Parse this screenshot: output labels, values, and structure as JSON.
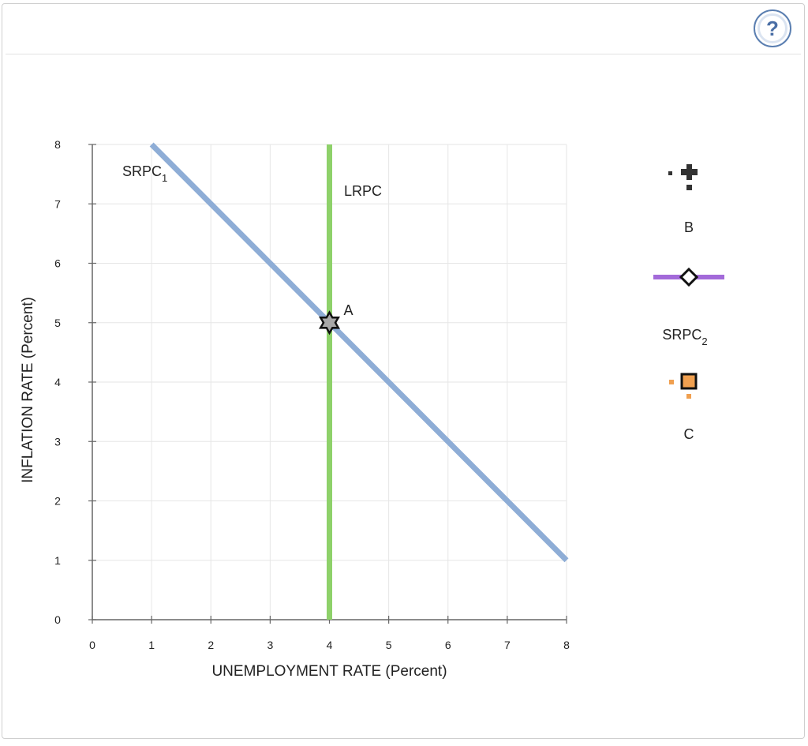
{
  "help": {
    "glyph": "?"
  },
  "chart_data": {
    "type": "line",
    "xlabel": "UNEMPLOYMENT RATE (Percent)",
    "ylabel": "INFLATION RATE (Percent)",
    "xlim": [
      0,
      8
    ],
    "ylim": [
      0,
      8
    ],
    "x_ticks": [
      "0",
      "1",
      "2",
      "3",
      "4",
      "5",
      "6",
      "7",
      "8"
    ],
    "y_ticks": [
      "0",
      "1",
      "2",
      "3",
      "4",
      "5",
      "6",
      "7",
      "8"
    ],
    "grid": true,
    "series": [
      {
        "name": "SRPC",
        "subscript": "1",
        "points": [
          [
            1,
            8
          ],
          [
            8,
            1
          ]
        ],
        "color": "#8eadd6"
      },
      {
        "name": "LRPC",
        "points": [
          [
            4,
            0
          ],
          [
            4,
            8
          ]
        ],
        "color": "#8ed16a"
      }
    ],
    "points": [
      {
        "label": "A",
        "x": 4,
        "y": 5,
        "marker": "star",
        "color": "#a8a8a8"
      }
    ]
  },
  "palette": {
    "tools": [
      {
        "label": "B",
        "icon": "black-plus-point-tool",
        "color": "#333333"
      },
      {
        "label": "SRPC",
        "subscript": "2",
        "icon": "purple-line-tool",
        "color": "#a36ad9"
      },
      {
        "label": "C",
        "icon": "orange-square-point-tool",
        "color": "#f0a050"
      }
    ]
  }
}
